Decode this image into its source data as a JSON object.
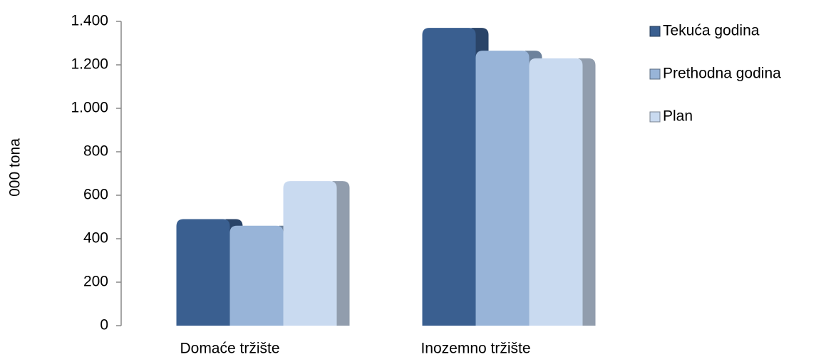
{
  "chart_data": {
    "type": "bar",
    "y_label": "000 tona",
    "categories": [
      "Domaće tržište",
      "Inozemno tržište"
    ],
    "series": [
      {
        "name": "Tekuća godina",
        "color": "#3a5f90",
        "values": [
          490,
          1370
        ]
      },
      {
        "name": "Prethodna godina",
        "color": "#98b4d8",
        "values": [
          460,
          1265
        ]
      },
      {
        "name": "Plan",
        "color": "#c9daf0",
        "values": [
          665,
          1230
        ]
      }
    ],
    "ylim": [
      0,
      1400
    ],
    "yticks": [
      0,
      200,
      400,
      600,
      800,
      {
        "value": 1000,
        "label": "1.000"
      },
      {
        "value": 1200,
        "label": "1.200"
      },
      {
        "value": 1400,
        "label": "1.400"
      }
    ],
    "grid": false,
    "legend": "right"
  }
}
